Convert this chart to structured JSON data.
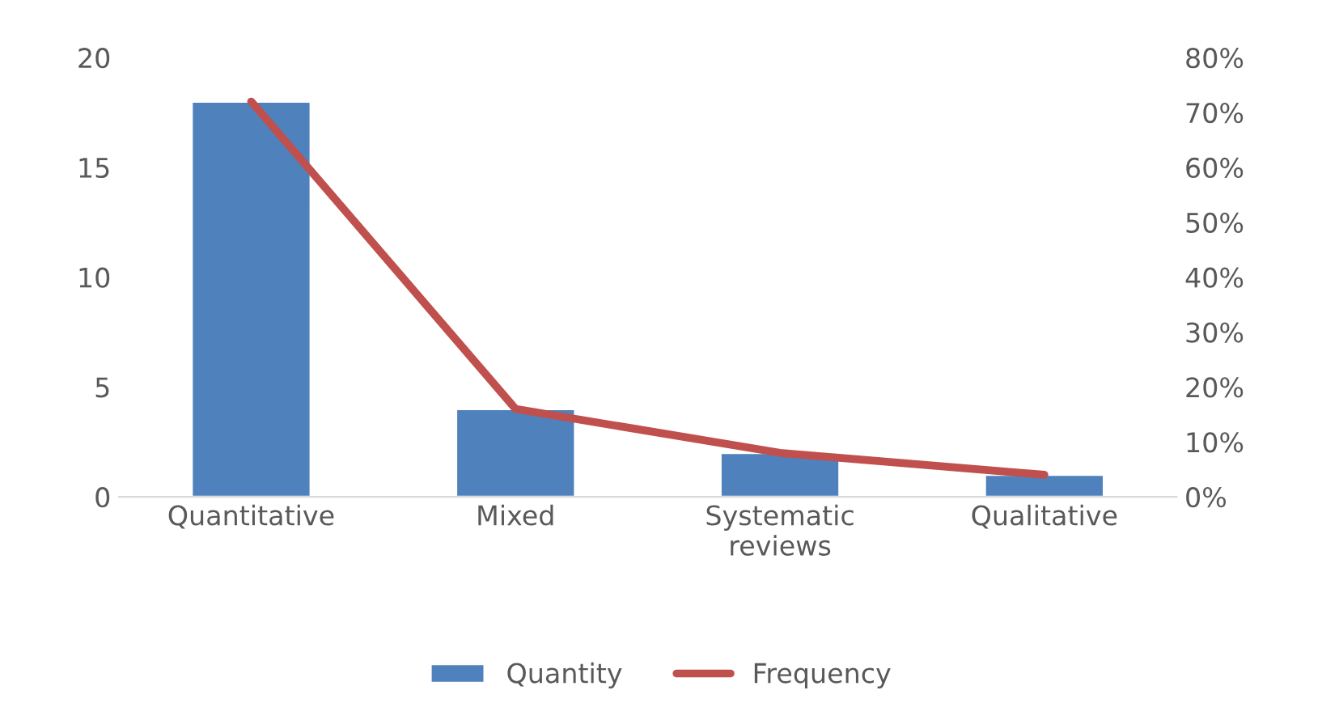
{
  "chart_data": {
    "type": "bar",
    "categories": [
      "Quantitative",
      "Mixed",
      "Systematic\nreviews",
      "Qualitative"
    ],
    "series": [
      {
        "name": "Quantity",
        "color": "#4f81bd",
        "values": [
          18,
          4,
          2,
          1
        ]
      },
      {
        "name": "Frequency",
        "type": "line",
        "axis": "y2",
        "color": "#c0504d",
        "values": [
          72,
          16,
          8,
          4
        ]
      }
    ],
    "ylim": [
      0,
      20
    ],
    "yticks": [
      0,
      5,
      10,
      15,
      20
    ],
    "y2lim": [
      0,
      80
    ],
    "y2ticks": [
      {
        "value": 0,
        "label": "0%"
      },
      {
        "value": 10,
        "label": "10%"
      },
      {
        "value": 20,
        "label": "20%"
      },
      {
        "value": 30,
        "label": "30%"
      },
      {
        "value": 40,
        "label": "40%"
      },
      {
        "value": 50,
        "label": "50%"
      },
      {
        "value": 60,
        "label": "60%"
      },
      {
        "value": 70,
        "label": "70%"
      },
      {
        "value": 80,
        "label": "80%"
      }
    ],
    "grid": false,
    "legend": "bottom",
    "marker": "none",
    "line_style": "solid"
  }
}
